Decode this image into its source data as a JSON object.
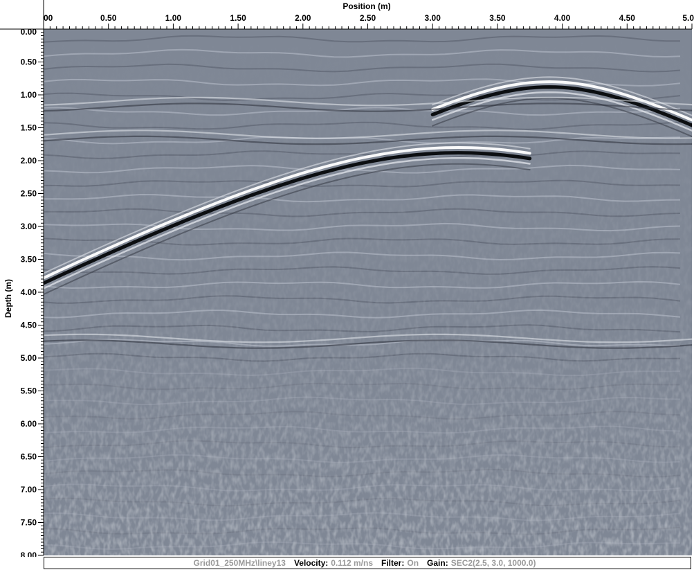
{
  "window": {
    "type": "gpr-radargram-viewer"
  },
  "axes": {
    "x_title": "Position (m)",
    "y_title": "Depth (m)",
    "x_ticks": [
      "00",
      "0.50",
      "1.00",
      "1.50",
      "2.00",
      "2.50",
      "3.00",
      "3.50",
      "4.00",
      "4.50",
      "5.0"
    ],
    "y_ticks": [
      "0.00",
      "0.50",
      "1.00",
      "1.50",
      "2.00",
      "2.50",
      "3.00",
      "3.50",
      "4.00",
      "4.50",
      "5.00",
      "5.50",
      "6.00",
      "6.50",
      "7.00",
      "7.50",
      "8.00"
    ],
    "x_range": [
      0,
      5.0
    ],
    "y_range": [
      0,
      8.0
    ]
  },
  "radargram": {
    "background_color": "#7f8795",
    "reflectors": [
      {
        "kind": "hyperbola",
        "apex_position_m": 3.2,
        "apex_depth_m": 1.85,
        "left_extent_m": 0.0,
        "right_extent_m": 3.75
      },
      {
        "kind": "hyperbola",
        "apex_position_m": 3.9,
        "apex_depth_m": 0.85,
        "left_extent_m": 3.0,
        "right_extent_m": 5.0
      },
      {
        "kind": "layer",
        "depth_m": 1.15
      },
      {
        "kind": "layer",
        "depth_m": 1.65
      },
      {
        "kind": "layer",
        "depth_m": 4.75
      }
    ]
  },
  "status": {
    "file": "Grid01_250MHz\\liney13",
    "velocity_label": "Velocity:",
    "velocity_value": "0.112 m/ns",
    "filter_label": "Filter:",
    "filter_value": "On",
    "gain_label": "Gain:",
    "gain_value": "SEC2(2.5, 3.0, 1000.0)"
  }
}
